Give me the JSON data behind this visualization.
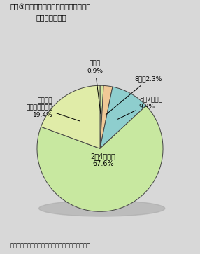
{
  "title_line1": "図表③　地方公共団体における職員への",
  "title_line2": "パソコン配備率",
  "footnote": "「地方公共団体アンケート」（郵政省）により作成",
  "slice_values": [
    0.9,
    2.3,
    9.9,
    67.6,
    19.4
  ],
  "slice_colors": [
    "#d4e8a0",
    "#f0c896",
    "#8ecece",
    "#c8e8a0",
    "#e0eca8"
  ],
  "label_murekaito": "無回答\n0.9%",
  "label_8wari": "8割以2.3%",
  "label_57wari": "5～7割程度\n9.9%",
  "label_24wari": "2～4割程度\n67.6%",
  "label_hotondo": "ほとんど\n設置していない\n19.4%",
  "background_color": "#d8d8d8",
  "edge_color": "#444444",
  "font_size": 6.5,
  "title_font_size": 7.5
}
